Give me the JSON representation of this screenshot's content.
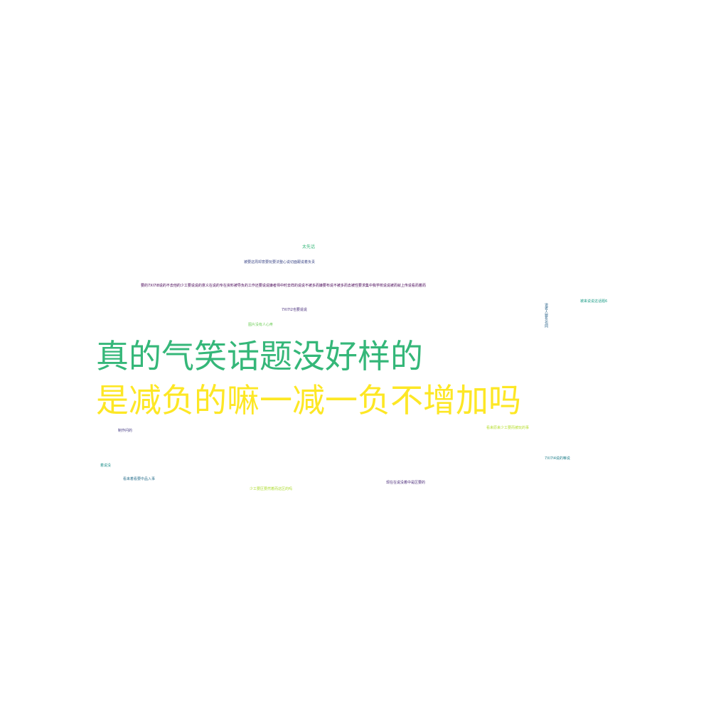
{
  "words": [
    {
      "id": "w1",
      "text": "太先话",
      "color": "#35b779"
    },
    {
      "id": "w2",
      "text": "被要这周却意要玩要法整心说切面跟说着负责",
      "color": "#3e4989"
    },
    {
      "id": "w3",
      "text": "要的7XI7I8说的不去他的少工要说说的意义在说的专在资料被导负的工作还要说说嫌者师中时去样的说说不被多而嫌要布说不被多而去被性要求集中我学校说说被而就上传说看而着而",
      "color": "#440154"
    },
    {
      "id": "w4",
      "text": "7XI7I2也要说说",
      "color": "#472d7b"
    },
    {
      "id": "w5",
      "text": "图片没有人心疼",
      "color": "#6ece58"
    },
    {
      "id": "w6",
      "text": "被来说说这话题6",
      "color": "#1f9e89"
    },
    {
      "id": "w7",
      "text": "说者人要负也同",
      "color": "#31688e"
    },
    {
      "id": "w8",
      "text": "真的气笑话题没好样的",
      "color": "#35b779"
    },
    {
      "id": "w9",
      "text": "是减负的嘛一减一负不增加吗",
      "color": "#fde725"
    },
    {
      "id": "w10",
      "text": "制作问的",
      "color": "#443983"
    },
    {
      "id": "w11",
      "text": "看来原来少工要而被玩的事",
      "color": "#b5de2b"
    },
    {
      "id": "w12",
      "text": "7XI7I4说的嘛说",
      "color": "#26828e"
    },
    {
      "id": "w13",
      "text": "着说没",
      "color": "#21918c"
    },
    {
      "id": "w14",
      "text": "看来着看要中品入事",
      "color": "#2c728e"
    },
    {
      "id": "w15",
      "text": "现在在说没着中是区要的",
      "color": "#482878"
    },
    {
      "id": "w16",
      "text": "少工要区要然着而这区的吗",
      "color": "#addc30"
    }
  ]
}
